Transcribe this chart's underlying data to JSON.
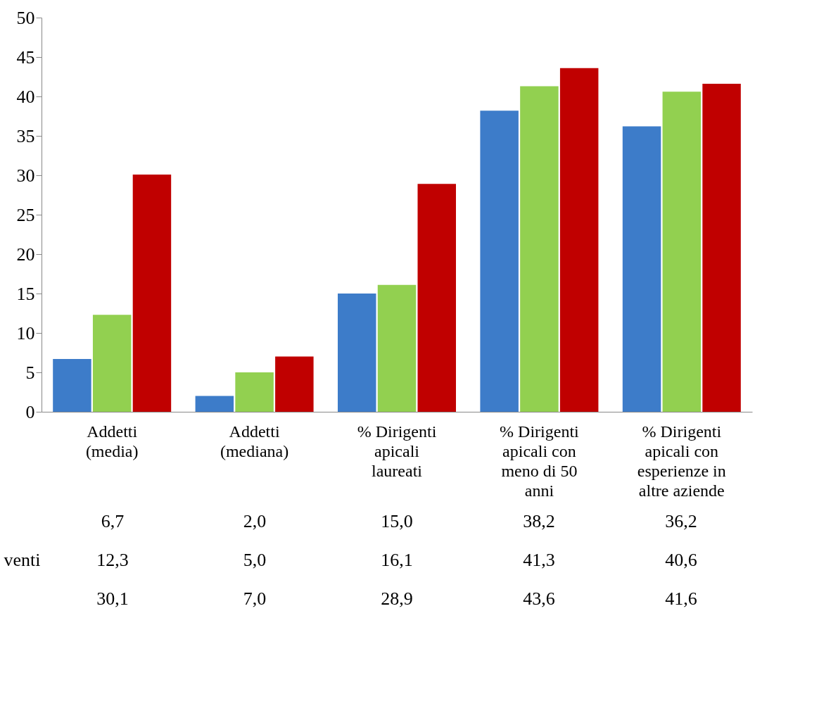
{
  "chart_data": {
    "type": "bar",
    "categories": [
      "Addetti (media)",
      "Addetti (mediana)",
      "% Dirigenti apicali laureati",
      "% Dirigenti apicali con meno di 50 anni",
      "% Dirigenti apicali con esperienze in altre aziende"
    ],
    "series": [
      {
        "color": "#3d7cc9",
        "values": [
          6.7,
          2.0,
          15.0,
          38.2,
          36.2
        ],
        "value_labels": [
          "6,7",
          "2,0",
          "15,0",
          "38,2",
          "36,2"
        ]
      },
      {
        "name": "venti",
        "color": "#92d050",
        "values": [
          12.3,
          5.0,
          16.1,
          41.3,
          40.6
        ],
        "value_labels": [
          "12,3",
          "5,0",
          "16,1",
          "41,3",
          "40,6"
        ]
      },
      {
        "color": "#c00000",
        "values": [
          30.1,
          7.0,
          28.9,
          43.6,
          41.6
        ],
        "value_labels": [
          "30,1",
          "7,0",
          "28,9",
          "43,6",
          "41,6"
        ]
      }
    ],
    "ylim": [
      0,
      50
    ],
    "yticks": [
      0,
      5,
      10,
      15,
      20,
      25,
      30,
      35,
      40,
      45,
      50
    ]
  }
}
